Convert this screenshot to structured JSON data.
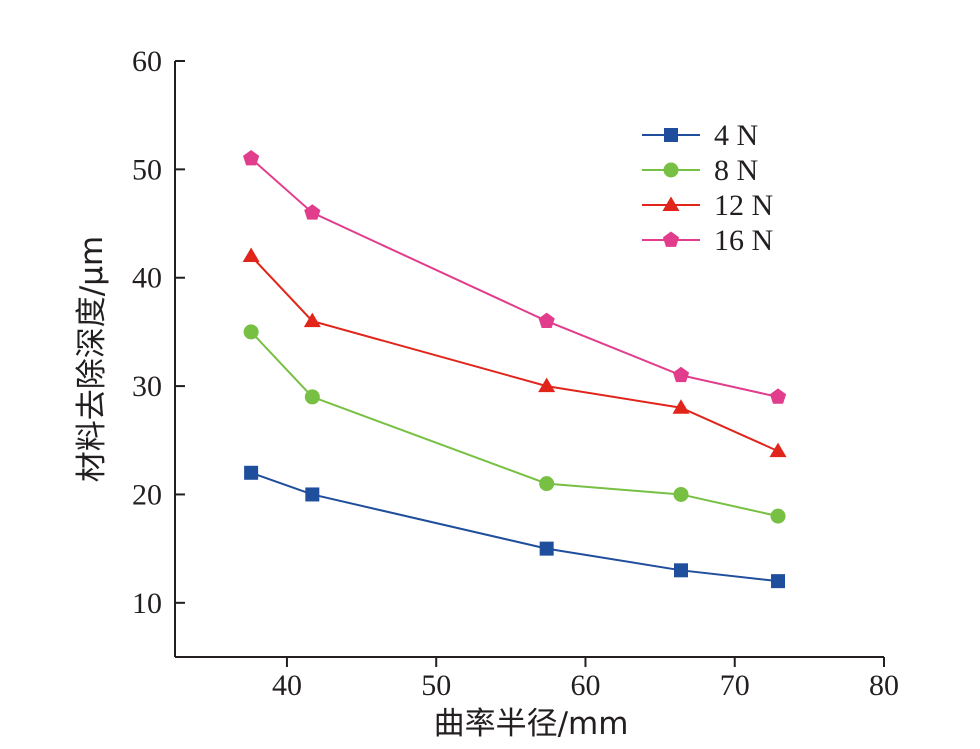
{
  "chart_data": {
    "type": "line",
    "title": "",
    "xlabel": "曲率半径/mm",
    "ylabel": "材料去除深度/μm",
    "xlim": [
      32.5,
      80
    ],
    "ylim": [
      5,
      60
    ],
    "x_ticks": [
      40,
      50,
      60,
      70,
      80
    ],
    "y_ticks": [
      10,
      20,
      30,
      40,
      50,
      60
    ],
    "x_tick_labels": [
      "40",
      "50",
      "60",
      "70",
      "80"
    ],
    "y_tick_labels": [
      "10",
      "20",
      "30",
      "40",
      "50",
      "60"
    ],
    "grid": false,
    "legend_position": "top-right",
    "x": [
      37.6,
      41.7,
      57.4,
      66.4,
      72.9
    ],
    "series": [
      {
        "name": "4 N",
        "values": [
          22,
          20,
          15,
          13,
          12
        ],
        "color": "#1f4e9c",
        "marker": "square"
      },
      {
        "name": "8 N",
        "values": [
          35,
          29,
          21,
          20,
          18
        ],
        "color": "#77c043",
        "marker": "circle"
      },
      {
        "name": "12 N",
        "values": [
          42,
          36,
          30,
          28,
          24
        ],
        "color": "#e1251b",
        "marker": "triangle"
      },
      {
        "name": "16 N",
        "values": [
          51,
          46,
          36,
          31,
          29
        ],
        "color": "#e23c8c",
        "marker": "pentagon"
      }
    ]
  }
}
